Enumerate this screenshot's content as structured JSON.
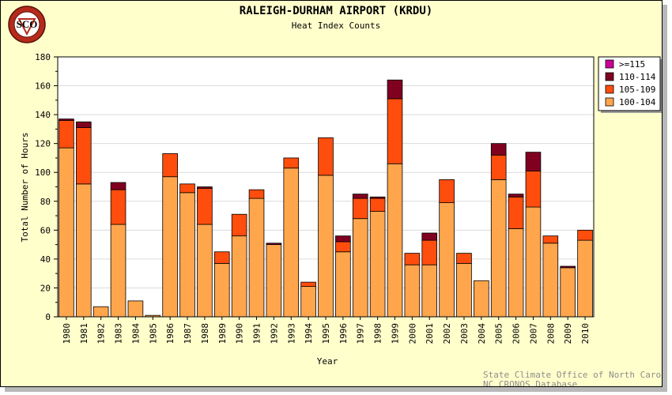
{
  "chart_data": {
    "type": "bar",
    "stacked": true,
    "title": "RALEIGH-DURHAM AIRPORT (KRDU)",
    "subtitle": "Heat Index Counts",
    "xlabel": "Year",
    "ylabel": "Total Number of Hours",
    "ylim": [
      0,
      180
    ],
    "yticks": [
      0,
      20,
      40,
      60,
      80,
      100,
      120,
      140,
      160,
      180
    ],
    "grid": true,
    "legend_position": "top-right",
    "categories": [
      "1980",
      "1981",
      "1982",
      "1983",
      "1984",
      "1985",
      "1986",
      "1987",
      "1988",
      "1989",
      "1990",
      "1991",
      "1992",
      "1993",
      "1994",
      "1995",
      "1996",
      "1997",
      "1998",
      "1999",
      "2000",
      "2001",
      "2002",
      "2003",
      "2004",
      "2005",
      "2006",
      "2007",
      "2008",
      "2009",
      "2010"
    ],
    "series": [
      {
        "name": "100-104",
        "color": "#ffa64d",
        "values": [
          117,
          92,
          7,
          64,
          11,
          1,
          97,
          86,
          64,
          37,
          56,
          82,
          50,
          103,
          21,
          98,
          45,
          68,
          73,
          106,
          36,
          36,
          79,
          37,
          25,
          95,
          61,
          76,
          51,
          34,
          53
        ]
      },
      {
        "name": "105-109",
        "color": "#ff4d0d",
        "values": [
          19,
          39,
          0,
          24,
          0,
          0,
          16,
          6,
          25,
          8,
          15,
          6,
          0,
          7,
          3,
          26,
          7,
          14,
          9,
          45,
          8,
          17,
          16,
          7,
          0,
          17,
          22,
          25,
          5,
          0,
          7
        ]
      },
      {
        "name": "110-114",
        "color": "#800020",
        "values": [
          1,
          4,
          0,
          5,
          0,
          0,
          0,
          0,
          1,
          0,
          0,
          0,
          1,
          0,
          0,
          0,
          4,
          3,
          1,
          13,
          0,
          5,
          0,
          0,
          0,
          8,
          2,
          13,
          0,
          1,
          0
        ]
      },
      {
        "name": ">=115",
        "color": "#cc0099",
        "values": [
          0,
          0,
          0,
          0,
          0,
          0,
          0,
          0,
          0,
          0,
          0,
          0,
          0,
          0,
          0,
          0,
          0,
          0,
          0,
          0,
          0,
          0,
          0,
          0,
          0,
          0,
          0,
          0,
          0,
          0,
          0
        ]
      }
    ],
    "legend_order": [
      ">=115",
      "110-114",
      "105-109",
      "100-104"
    ]
  },
  "credits": {
    "line1": "State Climate Office of North Carolina",
    "line2": "NC CRONOS Database"
  },
  "logo": {
    "text": "SCO",
    "ring_text": "STATE CLIMATE OFFICE OF NORTH CAROLINA",
    "color": "#cc2a1a"
  }
}
